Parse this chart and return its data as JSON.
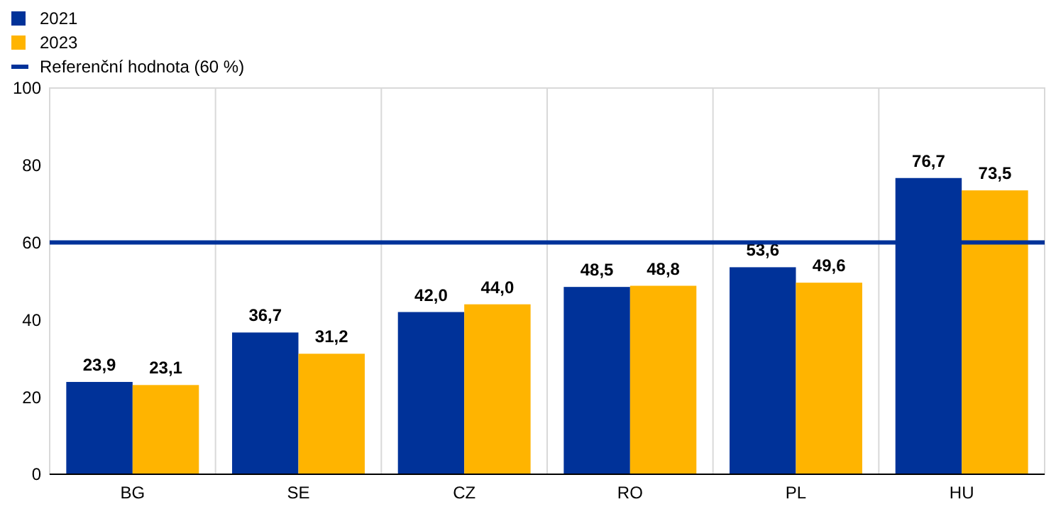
{
  "chart_data": {
    "type": "bar",
    "categories": [
      "BG",
      "SE",
      "CZ",
      "RO",
      "PL",
      "HU"
    ],
    "series": [
      {
        "name": "2021",
        "color": "#003299",
        "values": [
          23.9,
          36.7,
          42.0,
          48.5,
          53.6,
          76.7
        ],
        "value_labels": [
          "23,9",
          "36,7",
          "42,0",
          "48,5",
          "53,6",
          "76,7"
        ]
      },
      {
        "name": "2023",
        "color": "#ffb400",
        "values": [
          23.1,
          31.2,
          44.0,
          48.8,
          49.6,
          73.5
        ],
        "value_labels": [
          "23,1",
          "31,2",
          "44,0",
          "48,8",
          "49,6",
          "73,5"
        ]
      }
    ],
    "ylim": [
      0,
      100
    ],
    "yticks": [
      0,
      20,
      40,
      60,
      80,
      100
    ],
    "grid": "x",
    "legend": "top left",
    "ref_lines": [
      {
        "axis": "y",
        "value": 60,
        "label": "Referenční hodnota (60 %)",
        "color": "#003299"
      }
    ]
  }
}
